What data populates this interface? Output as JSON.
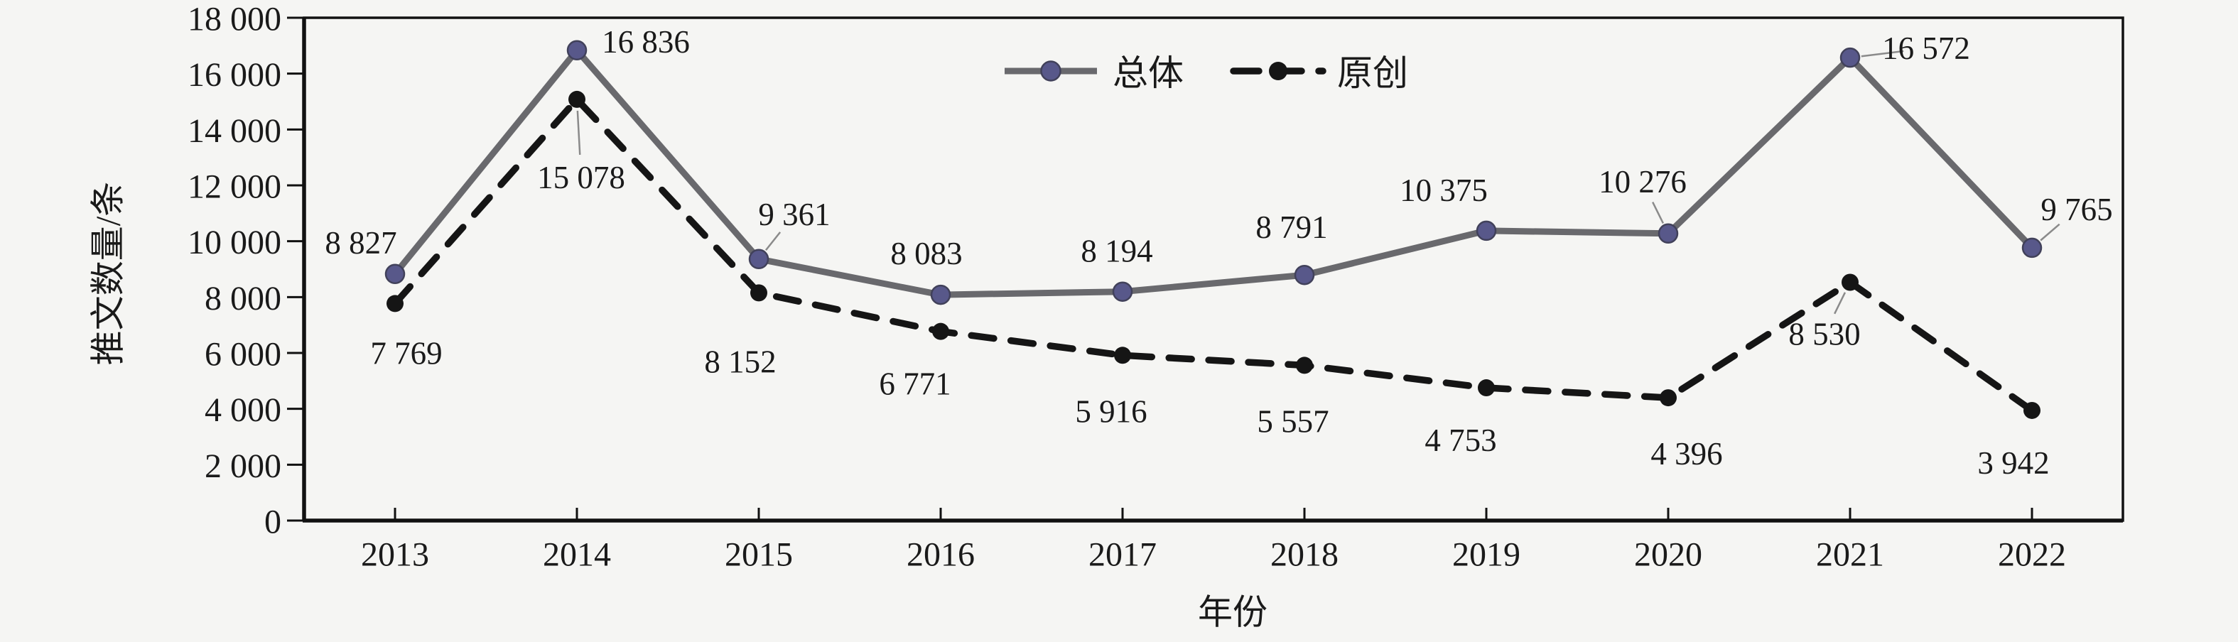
{
  "chart_data": {
    "type": "line",
    "title": "",
    "xlabel": "年份",
    "ylabel": "推文数量/条",
    "categories": [
      "2013",
      "2014",
      "2015",
      "2016",
      "2017",
      "2018",
      "2019",
      "2020",
      "2021",
      "2022"
    ],
    "ylim": [
      0,
      18000
    ],
    "ytick_step": 2000,
    "ytick_labels": [
      "0",
      "2 000",
      "4 000",
      "6 000",
      "8 000",
      "10 000",
      "12 000",
      "14 000",
      "16 000",
      "18 000"
    ],
    "grid": false,
    "legend_position": "top-center",
    "series": [
      {
        "name": "总体",
        "line_style": "solid",
        "line_color": "#69696d",
        "marker": "circle",
        "marker_color": "#58588a",
        "values": [
          8827,
          16836,
          9361,
          8083,
          8194,
          8791,
          10375,
          10276,
          16572,
          9765
        ],
        "point_labels": [
          "8 827",
          "16 836",
          "9 361",
          "8 083",
          "8 194",
          "8 791",
          "10 375",
          "10 276",
          "16 572",
          "9 765"
        ]
      },
      {
        "name": "原创",
        "line_style": "dashed",
        "line_color": "#151515",
        "marker": "circle",
        "marker_color": "#151515",
        "values": [
          7769,
          15078,
          8152,
          6771,
          5916,
          5557,
          4753,
          4396,
          8530,
          3942
        ],
        "point_labels": [
          "7 769",
          "15 078",
          "8 152",
          "6 771",
          "5 916",
          "5 557",
          "4 753",
          "4 396",
          "8 530",
          "3 942"
        ]
      }
    ]
  },
  "colors": {
    "background": "#f5f5f3",
    "axis": "#111111",
    "text": "#1a1a1a",
    "leader_line": "#8a8a8a",
    "total_line": "#69696d",
    "total_marker": "#58588a",
    "original_line": "#151515"
  }
}
